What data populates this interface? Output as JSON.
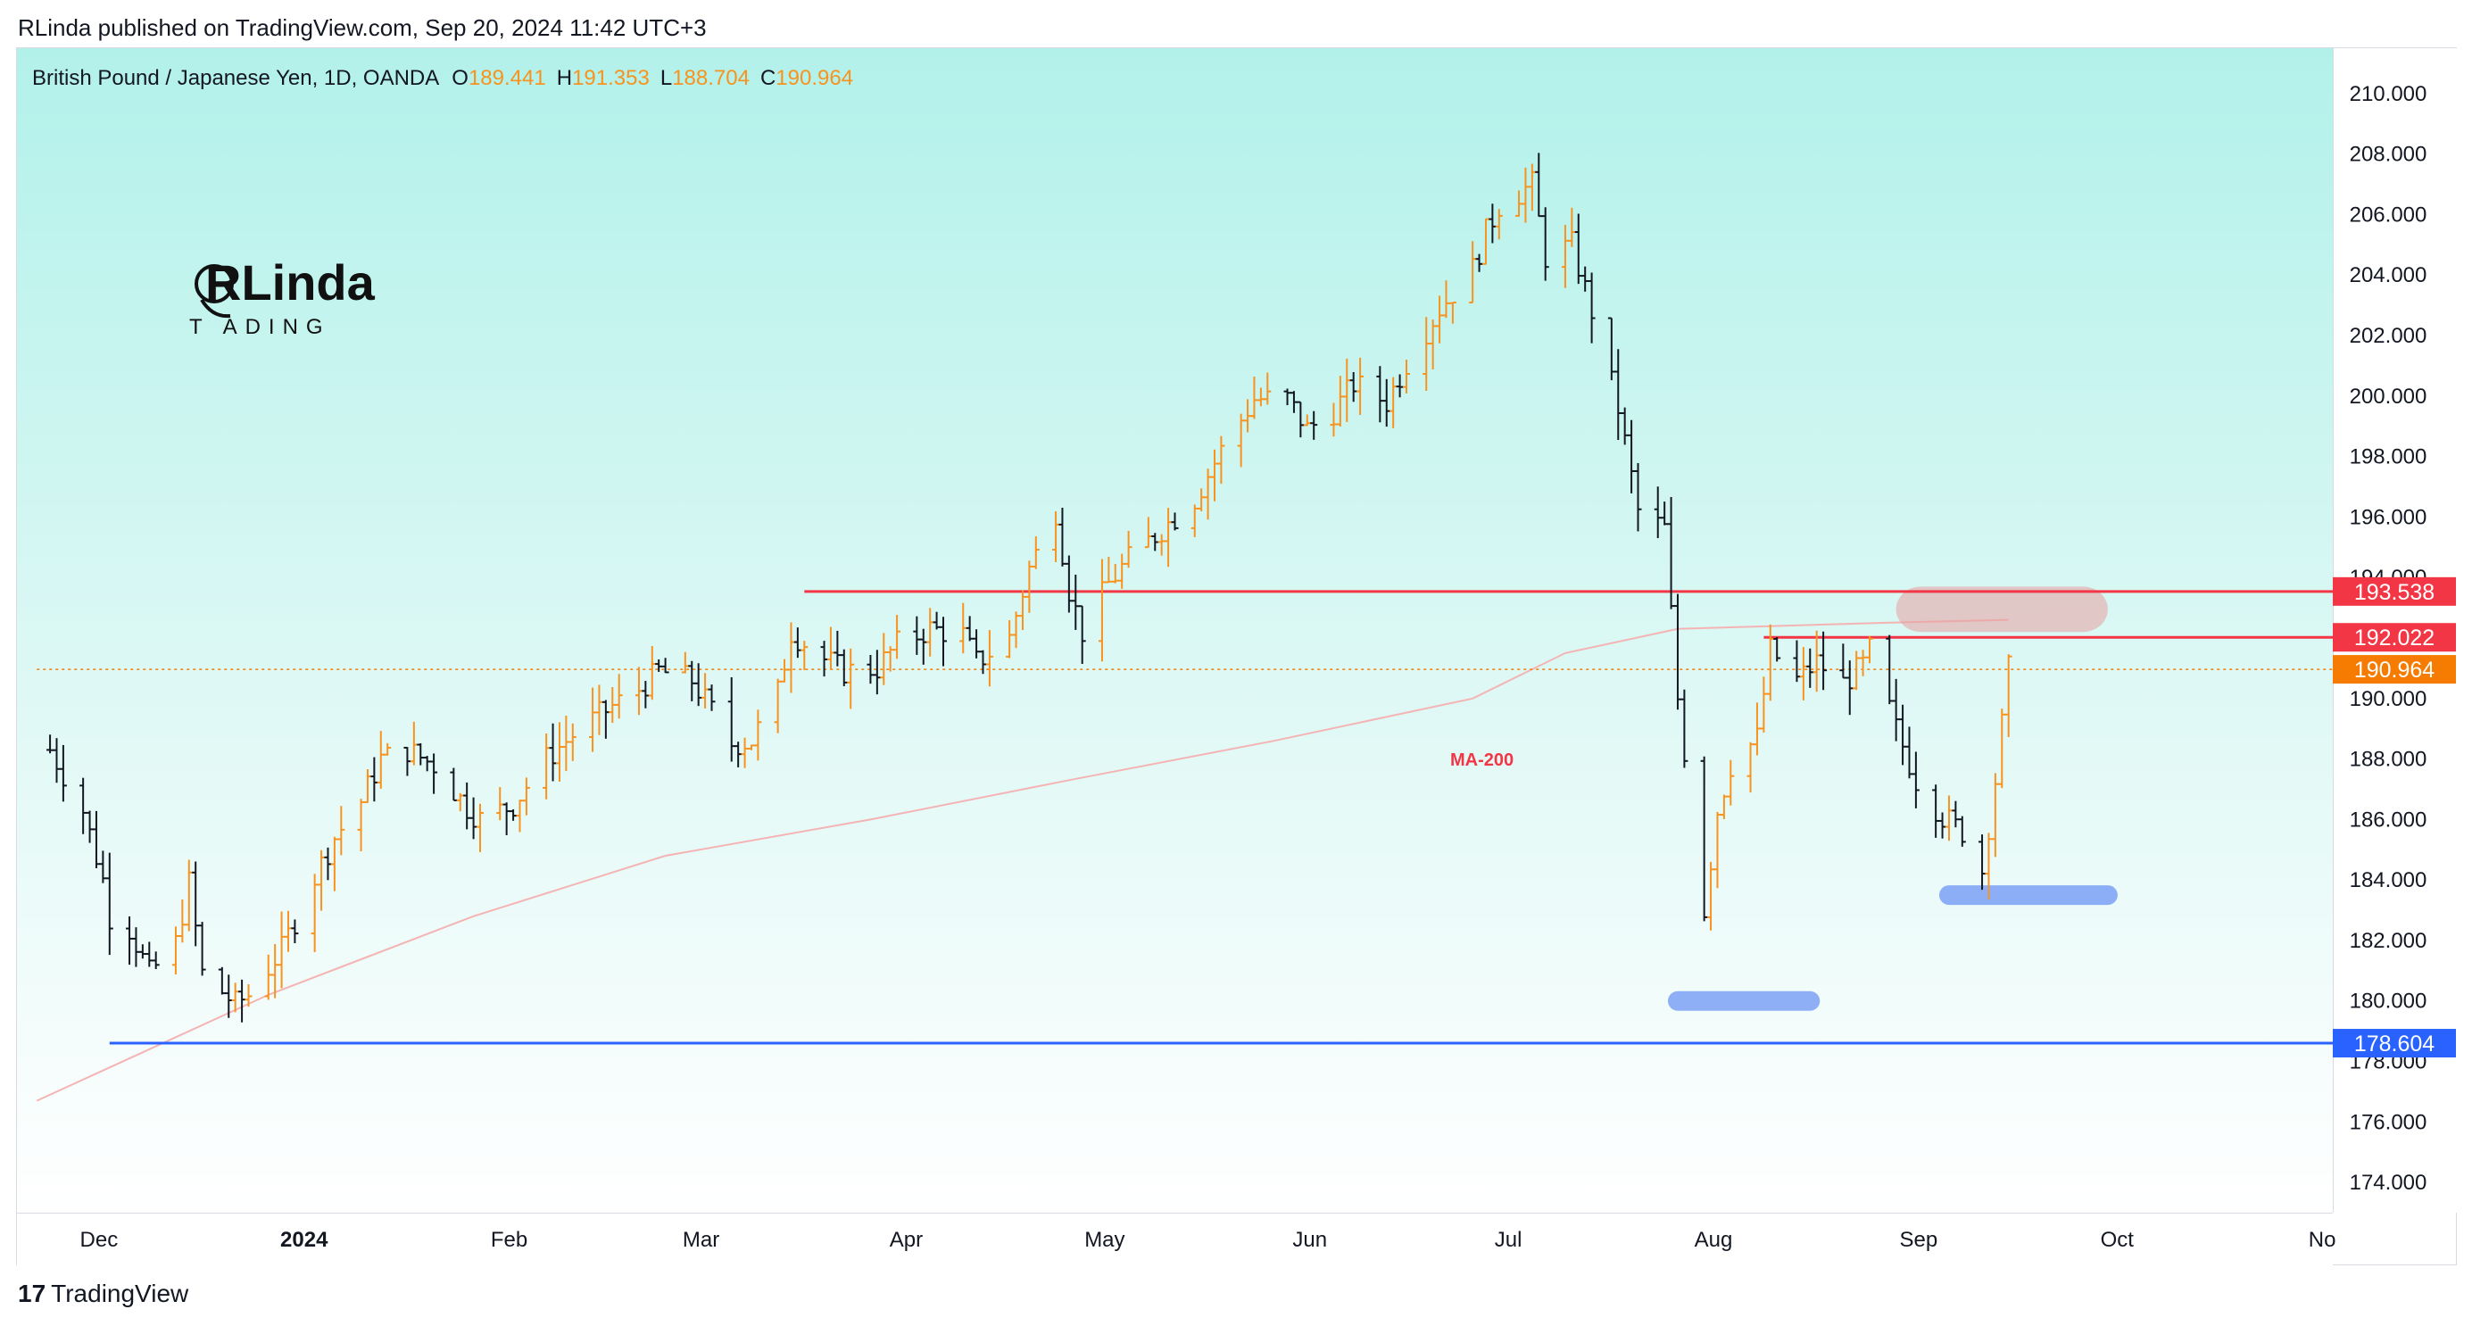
{
  "header": {
    "published": "RLinda published on TradingView.com, Sep 20, 2024 11:42 UTC+3"
  },
  "legend": {
    "symbol": "British Pound / Japanese Yen, 1D, OANDA",
    "o_label": "O",
    "o_value": "189.441",
    "h_label": "H",
    "h_value": "191.353",
    "l_label": "L",
    "l_value": "188.704",
    "c_label": "C",
    "c_value": "190.964"
  },
  "logo": {
    "line1": "RLinda",
    "line2": "T  ADING"
  },
  "footer": {
    "brand": "TradingView",
    "brand_mark": "17"
  },
  "colors": {
    "up": "#f7931e",
    "down": "#131722",
    "resistance": "#f23645",
    "support": "#2962ff",
    "ma": "#f4b4b4",
    "highlight_red": "#e8a0a0",
    "highlight_blue": "#6d95f5"
  },
  "chart_data": {
    "type": "ohlc",
    "ylim": [
      173,
      211.5
    ],
    "yticks": [
      "174.000",
      "176.000",
      "178.000",
      "180.000",
      "182.000",
      "184.000",
      "186.000",
      "188.000",
      "190.000",
      "192.000",
      "194.000",
      "196.000",
      "198.000",
      "200.000",
      "202.000",
      "204.000",
      "206.000",
      "208.000",
      "210.000"
    ],
    "xticks": [
      {
        "label": "Dec",
        "date": "2023-12-01",
        "bold": false
      },
      {
        "label": "2024",
        "date": "2024-01-01",
        "bold": true
      },
      {
        "label": "Feb",
        "date": "2024-02-01",
        "bold": false
      },
      {
        "label": "Mar",
        "date": "2024-03-01",
        "bold": false
      },
      {
        "label": "Apr",
        "date": "2024-04-01",
        "bold": false
      },
      {
        "label": "May",
        "date": "2024-05-01",
        "bold": false
      },
      {
        "label": "Jun",
        "date": "2024-06-01",
        "bold": false
      },
      {
        "label": "Jul",
        "date": "2024-07-01",
        "bold": false
      },
      {
        "label": "Aug",
        "date": "2024-08-01",
        "bold": false
      },
      {
        "label": "Sep",
        "date": "2024-09-01",
        "bold": false
      },
      {
        "label": "Oct",
        "date": "2024-10-01",
        "bold": false
      },
      {
        "label": "No",
        "date": "2024-11-01",
        "bold": false
      }
    ],
    "close_trend": [
      [
        "2023-11-29",
        188.3
      ],
      [
        "2023-12-04",
        186.3
      ],
      [
        "2023-12-07",
        184.0
      ],
      [
        "2023-12-08",
        182.8
      ],
      [
        "2023-12-11",
        182.4
      ],
      [
        "2023-12-14",
        180.9
      ],
      [
        "2023-12-18",
        181.9
      ],
      [
        "2023-12-20",
        183.9
      ],
      [
        "2023-12-22",
        180.9
      ],
      [
        "2023-12-27",
        179.9
      ],
      [
        "2023-12-29",
        180.2
      ],
      [
        "2024-01-03",
        181.7
      ],
      [
        "2024-01-08",
        184.1
      ],
      [
        "2024-01-11",
        185.4
      ],
      [
        "2024-01-15",
        186.6
      ],
      [
        "2024-01-18",
        188.0
      ],
      [
        "2024-01-22",
        188.3
      ],
      [
        "2024-01-26",
        187.8
      ],
      [
        "2024-01-31",
        186.4
      ],
      [
        "2024-02-02",
        186.0
      ],
      [
        "2024-02-07",
        186.5
      ],
      [
        "2024-02-12",
        188.0
      ],
      [
        "2024-02-16",
        188.8
      ],
      [
        "2024-02-21",
        189.6
      ],
      [
        "2024-02-26",
        190.3
      ],
      [
        "2024-02-29",
        190.9
      ],
      [
        "2024-03-05",
        190.6
      ],
      [
        "2024-03-08",
        189.6
      ],
      [
        "2024-03-11",
        188.5
      ],
      [
        "2024-03-14",
        188.6
      ],
      [
        "2024-03-18",
        190.2
      ],
      [
        "2024-03-20",
        192.2
      ],
      [
        "2024-03-25",
        191.3
      ],
      [
        "2024-03-28",
        190.9
      ],
      [
        "2024-04-02",
        191.0
      ],
      [
        "2024-04-05",
        191.8
      ],
      [
        "2024-04-10",
        192.3
      ],
      [
        "2024-04-15",
        192.1
      ],
      [
        "2024-04-17",
        191.2
      ],
      [
        "2024-04-22",
        192.0
      ],
      [
        "2024-04-25",
        194.3
      ],
      [
        "2024-04-29",
        196.2
      ],
      [
        "2024-05-01",
        193.6
      ],
      [
        "2024-05-03",
        192.2
      ],
      [
        "2024-05-07",
        193.8
      ],
      [
        "2024-05-10",
        194.6
      ],
      [
        "2024-05-15",
        195.6
      ],
      [
        "2024-05-20",
        196.6
      ],
      [
        "2024-05-24",
        198.2
      ],
      [
        "2024-05-29",
        199.9
      ],
      [
        "2024-06-03",
        199.9
      ],
      [
        "2024-06-06",
        198.9
      ],
      [
        "2024-06-10",
        199.5
      ],
      [
        "2024-06-13",
        200.4
      ],
      [
        "2024-06-18",
        199.8
      ],
      [
        "2024-06-21",
        201.1
      ],
      [
        "2024-06-26",
        202.9
      ],
      [
        "2024-07-01",
        204.2
      ],
      [
        "2024-07-03",
        205.4
      ],
      [
        "2024-07-05",
        206.3
      ],
      [
        "2024-07-10",
        207.0
      ],
      [
        "2024-07-12",
        204.6
      ],
      [
        "2024-07-16",
        205.0
      ],
      [
        "2024-07-19",
        202.8
      ],
      [
        "2024-07-23",
        199.6
      ],
      [
        "2024-07-26",
        196.2
      ],
      [
        "2024-07-30",
        195.6
      ],
      [
        "2024-08-01",
        190.0
      ],
      [
        "2024-08-05",
        183.0
      ],
      [
        "2024-08-07",
        186.3
      ],
      [
        "2024-08-09",
        187.8
      ],
      [
        "2024-08-13",
        188.7
      ],
      [
        "2024-08-15",
        191.6
      ],
      [
        "2024-08-19",
        190.6
      ],
      [
        "2024-08-22",
        191.2
      ],
      [
        "2024-08-26",
        190.5
      ],
      [
        "2024-08-29",
        191.1
      ],
      [
        "2024-08-30",
        191.6
      ],
      [
        "2024-09-03",
        189.0
      ],
      [
        "2024-09-06",
        187.3
      ],
      [
        "2024-09-10",
        186.1
      ],
      [
        "2024-09-13",
        185.6
      ],
      [
        "2024-09-16",
        184.3
      ],
      [
        "2024-09-18",
        187.3
      ],
      [
        "2024-09-20",
        190.964
      ]
    ],
    "ma200": [
      [
        "2023-11-27",
        176.7
      ],
      [
        "2024-01-01",
        180.2
      ],
      [
        "2024-02-01",
        182.8
      ],
      [
        "2024-03-01",
        184.8
      ],
      [
        "2024-04-01",
        186.0
      ],
      [
        "2024-05-01",
        187.3
      ],
      [
        "2024-06-01",
        188.6
      ],
      [
        "2024-07-01",
        190.0
      ],
      [
        "2024-07-15",
        191.5
      ],
      [
        "2024-08-01",
        192.3
      ],
      [
        "2024-09-01",
        192.5
      ],
      [
        "2024-09-20",
        192.6
      ]
    ],
    "ma_label": "MA-200",
    "levels": [
      {
        "value": 193.538,
        "label": "193.538",
        "color": "#f23645",
        "from": "2024-03-22"
      },
      {
        "value": 192.022,
        "label": "192.022",
        "color": "#f23645",
        "from": "2024-08-14"
      },
      {
        "value": 190.964,
        "label": "190.964",
        "color": "#f57c00",
        "from": "2023-11-27",
        "dotted": true
      },
      {
        "value": 178.604,
        "label": "178.604",
        "color": "#2962ff",
        "from": "2023-12-08"
      }
    ],
    "zones": [
      {
        "type": "resistance",
        "from": "2024-09-03",
        "to": "2024-10-05",
        "high": 193.7,
        "low": 192.2,
        "color": "#e8a0a0"
      },
      {
        "type": "support",
        "from": "2024-08-01",
        "to": "2024-08-21",
        "value": 180.0,
        "color": "#6d95f5"
      },
      {
        "type": "support",
        "from": "2024-09-11",
        "to": "2024-10-05",
        "value": 183.5,
        "color": "#6d95f5"
      }
    ]
  }
}
